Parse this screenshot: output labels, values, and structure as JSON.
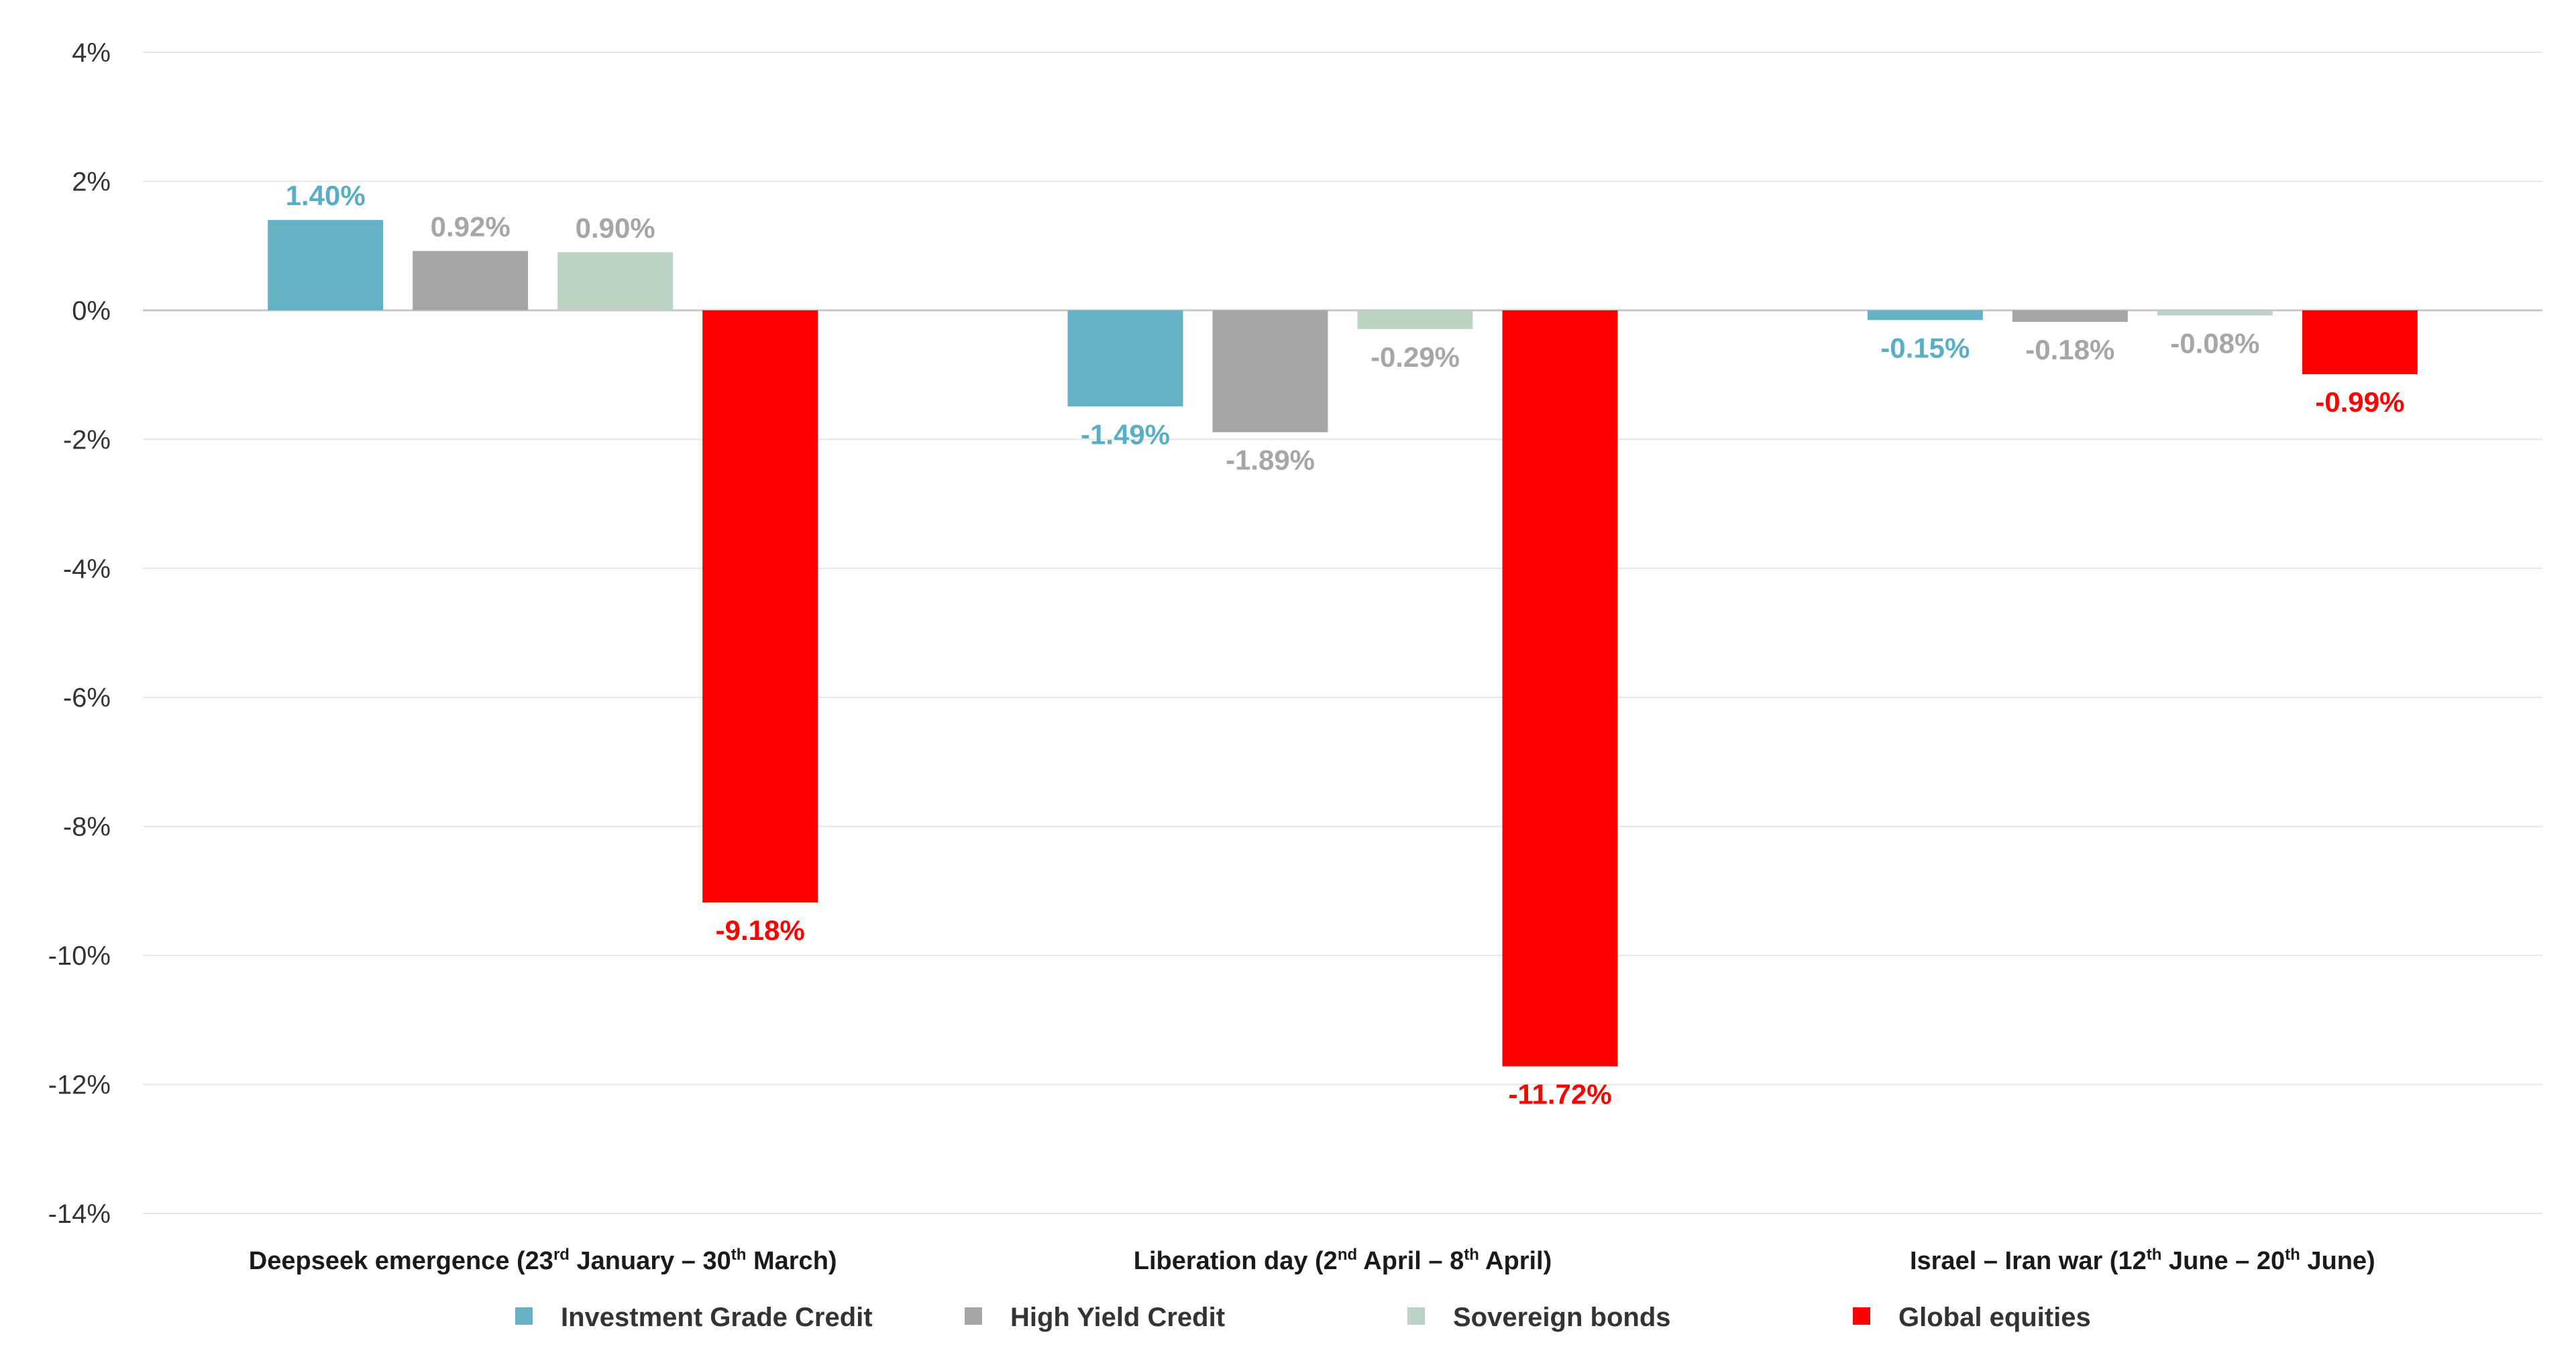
{
  "chart_data": {
    "type": "bar",
    "title": "",
    "xlabel": "",
    "ylabel": "",
    "ylim": [
      -14,
      4
    ],
    "yticks": [
      4,
      2,
      0,
      -2,
      -4,
      -6,
      -8,
      -10,
      -12,
      -14
    ],
    "ytick_labels": [
      "4%",
      "2%",
      "0%",
      "-2%",
      "-4%",
      "-6%",
      "-8%",
      "-10%",
      "-12%",
      "-14%"
    ],
    "grid": true,
    "legend_position": "bottom",
    "categories": [
      "Deepseek emergence (23rd January – 30th March)",
      "Liberation day (2nd April – 8th April)",
      "Israel – Iran war (12th June – 20th June)"
    ],
    "category_labels": [
      {
        "a": "Deepseek emergence (23",
        "sup1": "rd",
        "b": " January – 30",
        "sup2": "th",
        "c": " March)"
      },
      {
        "a": "Liberation day (2",
        "sup1": "nd",
        "b": " April – 8",
        "sup2": "th",
        "c": " April)"
      },
      {
        "a": "Israel – Iran war (12",
        "sup1": "th",
        "b": " June – 20",
        "sup2": "th",
        "c": " June)"
      }
    ],
    "series": [
      {
        "name": "Investment Grade Credit",
        "color": "#64b1c6",
        "label_color": "#5aaec4",
        "values": [
          1.4,
          -1.49,
          -0.15
        ],
        "labels": [
          "1.40%",
          "-1.49%",
          "-0.15%"
        ]
      },
      {
        "name": "High Yield Credit",
        "color": "#a6a6a6",
        "label_color": "#a6a6a6",
        "values": [
          0.92,
          -1.89,
          -0.18
        ],
        "labels": [
          "0.92%",
          "-1.89%",
          "-0.18%"
        ]
      },
      {
        "name": "Sovereign bonds",
        "color": "#bcd2c2",
        "label_color": "#a6a6a6",
        "values": [
          0.9,
          -0.29,
          -0.08
        ],
        "labels": [
          "0.90%",
          "-0.29%",
          "-0.08%"
        ]
      },
      {
        "name": "Global equities",
        "color": "#ff0000",
        "label_color": "#ff0000",
        "values": [
          -9.18,
          -11.72,
          -0.99
        ],
        "labels": [
          "-9.18%",
          "-11.72%",
          "-0.99%"
        ]
      }
    ]
  }
}
